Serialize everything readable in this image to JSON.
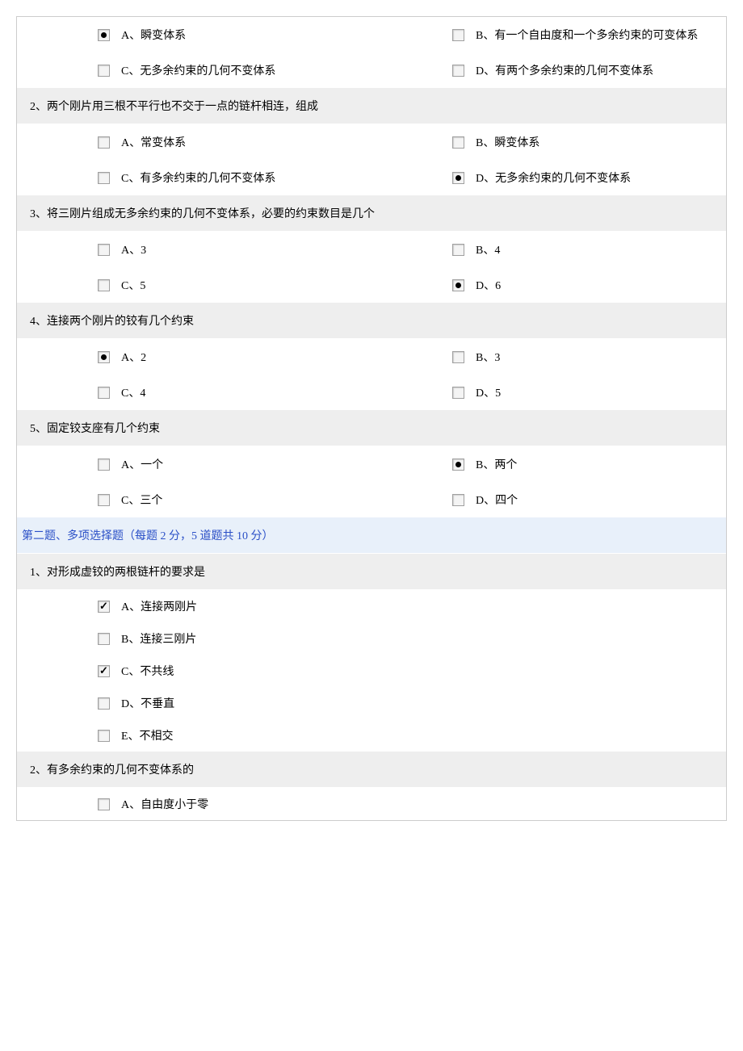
{
  "q1": {
    "A": "A、瞬变体系",
    "B": "B、有一个自由度和一个多余约束的可变体系",
    "C": "C、无多余约束的几何不变体系",
    "D": "D、有两个多余约束的几何不变体系",
    "selected": "A"
  },
  "q2": {
    "title": "2、两个刚片用三根不平行也不交于一点的链杆相连，组成",
    "A": "A、常变体系",
    "B": "B、瞬变体系",
    "C": "C、有多余约束的几何不变体系",
    "D": "D、无多余约束的几何不变体系",
    "selected": "D"
  },
  "q3": {
    "title": "3、将三刚片组成无多余约束的几何不变体系，必要的约束数目是几个",
    "A": "A、3",
    "B": "B、4",
    "C": "C、5",
    "D": "D、6",
    "selected": "D"
  },
  "q4": {
    "title": "4、连接两个刚片的铰有几个约束",
    "A": "A、2",
    "B": "B、3",
    "C": "C、4",
    "D": "D、5",
    "selected": "A"
  },
  "q5": {
    "title": "5、固定铰支座有几个约束",
    "A": "A、一个",
    "B": "B、两个",
    "C": "C、三个",
    "D": "D、四个",
    "selected": "B"
  },
  "section2": {
    "title": "第二题、多项选择题（每题 2 分，5 道题共 10 分）"
  },
  "mq1": {
    "title": "1、对形成虚铰的两根链杆的要求是",
    "A": "A、连接两刚片",
    "B": "B、连接三刚片",
    "C": "C、不共线",
    "D": "D、不垂直",
    "E": "E、不相交",
    "selected": [
      "A",
      "C"
    ]
  },
  "mq2": {
    "title": "2、有多余约束的几何不变体系的",
    "A": "A、自由度小于零"
  },
  "colors": {
    "question_bg": "#eeeeee",
    "section_bg": "#e8f0fa",
    "section_text": "#2a4fc7",
    "border": "#cccccc",
    "body_bg": "#ffffff",
    "text": "#000000"
  },
  "font": {
    "family": "SimSun",
    "size_pt": 10.5
  }
}
